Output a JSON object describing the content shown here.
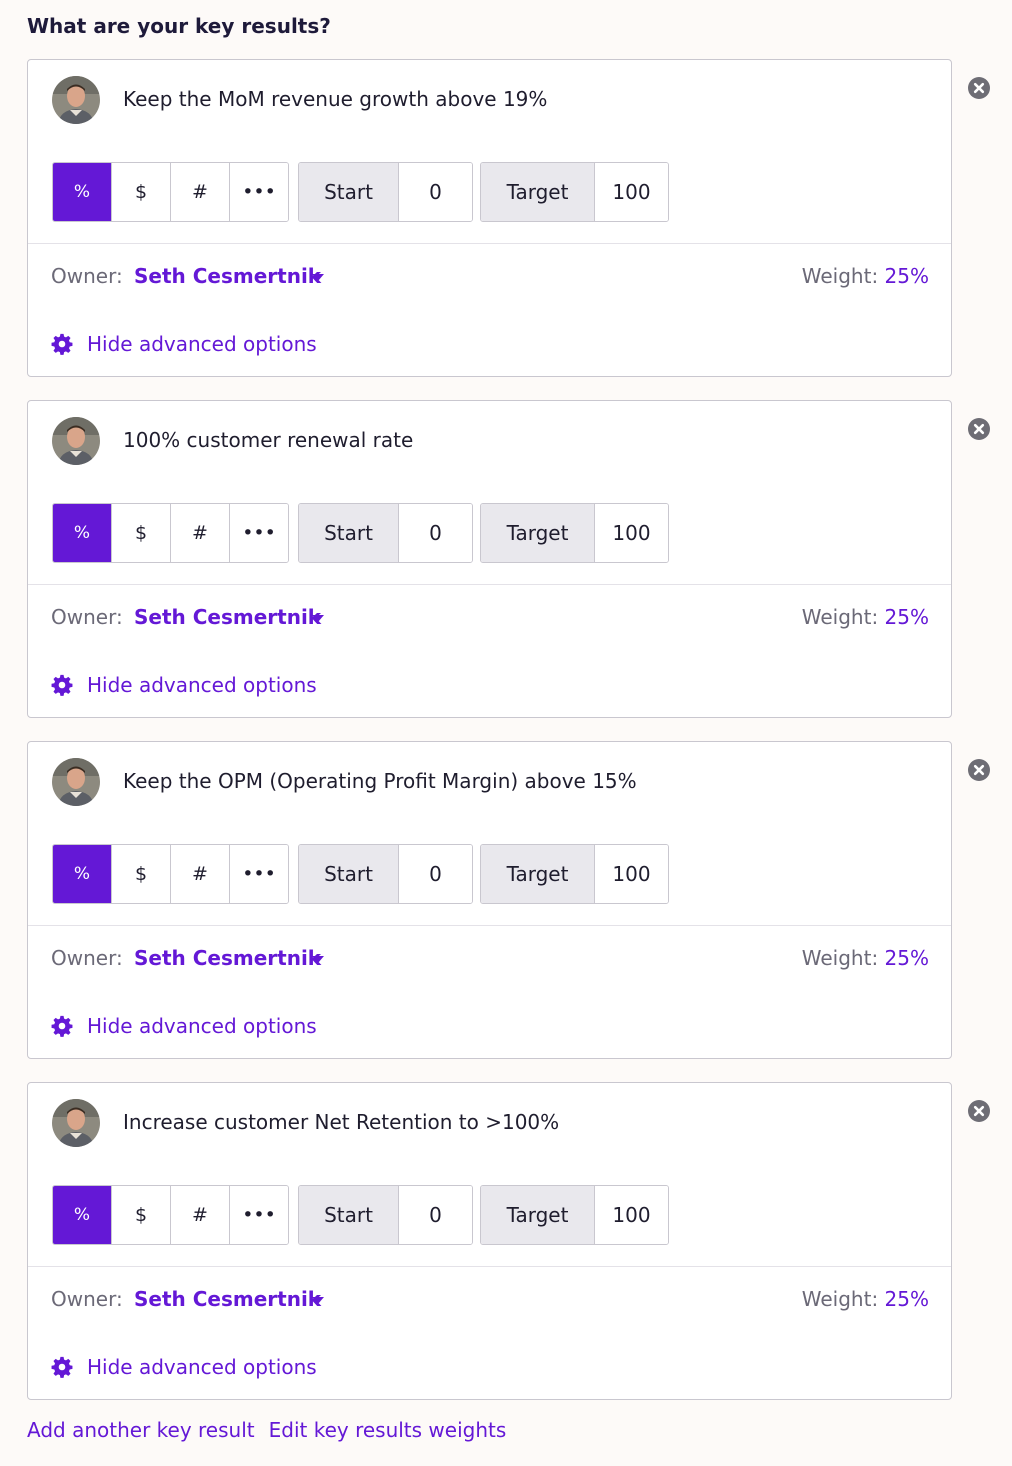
{
  "heading": "What are your key results?",
  "key_results": [
    {
      "title": "Keep the MoM revenue growth above 19%",
      "units": [
        "%",
        "$",
        "#",
        "•••"
      ],
      "selected_unit": "%",
      "start_label": "Start",
      "start_value": "0",
      "target_label": "Target",
      "target_value": "100",
      "owner_label": "Owner:",
      "owner_name": "Seth Cesmertnik",
      "weight_label": "Weight:",
      "weight_value": "25%",
      "advanced_label": "Hide advanced options"
    },
    {
      "title": "100% customer renewal rate",
      "units": [
        "%",
        "$",
        "#",
        "•••"
      ],
      "selected_unit": "%",
      "start_label": "Start",
      "start_value": "0",
      "target_label": "Target",
      "target_value": "100",
      "owner_label": "Owner:",
      "owner_name": "Seth Cesmertnik",
      "weight_label": "Weight:",
      "weight_value": "25%",
      "advanced_label": "Hide advanced options"
    },
    {
      "title": "Keep the OPM (Operating Profit Margin) above 15%",
      "units": [
        "%",
        "$",
        "#",
        "•••"
      ],
      "selected_unit": "%",
      "start_label": "Start",
      "start_value": "0",
      "target_label": "Target",
      "target_value": "100",
      "owner_label": "Owner:",
      "owner_name": "Seth Cesmertnik",
      "weight_label": "Weight:",
      "weight_value": "25%",
      "advanced_label": "Hide advanced options"
    },
    {
      "title": "Increase customer Net Retention to >100%",
      "units": [
        "%",
        "$",
        "#",
        "•••"
      ],
      "selected_unit": "%",
      "start_label": "Start",
      "start_value": "0",
      "target_label": "Target",
      "target_value": "100",
      "owner_label": "Owner:",
      "owner_name": "Seth Cesmertnik",
      "weight_label": "Weight:",
      "weight_value": "25%",
      "advanced_label": "Hide advanced options"
    }
  ],
  "footer": {
    "add_label": "Add another key result",
    "edit_weights_label": "Edit key results weights"
  },
  "icons": {
    "remove": "close-circle-icon",
    "settings": "gear-icon",
    "owner_dropdown": "caret-down-icon",
    "avatar": "user-avatar"
  },
  "colors": {
    "accent": "#6418d6",
    "text": "#1f1d2e",
    "muted": "#6b6977",
    "border": "#c9c7cf",
    "label_bg": "#e9e8ed",
    "page_bg": "#fdfaf8"
  }
}
